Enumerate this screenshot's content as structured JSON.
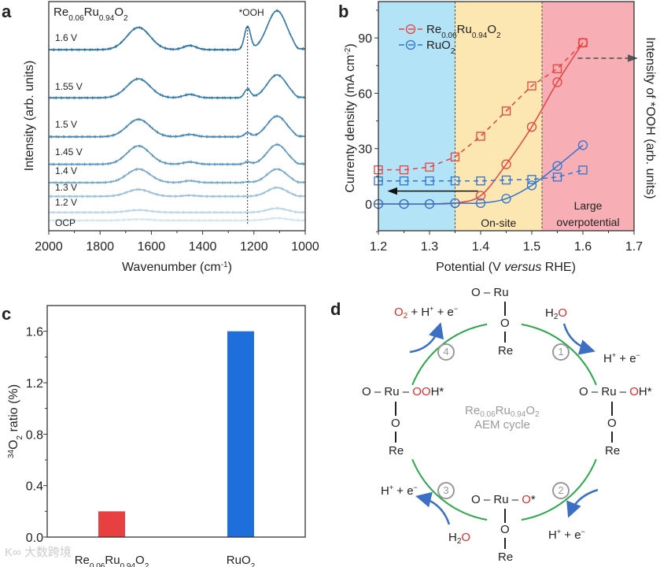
{
  "formula": {
    "re": "Re",
    "re_sub": "0.06",
    "ru": "Ru",
    "ru_sub": "0.94",
    "o": "O",
    "o_sub": "2"
  },
  "ruo2": {
    "ru": "RuO",
    "sub": "2"
  },
  "panel_labels": {
    "a": "a",
    "b": "b",
    "c": "c",
    "d": "d"
  },
  "watermark": "大数跨境",
  "chart_data": [
    {
      "panel": "a",
      "type": "line",
      "title_formula": "Re0.06Ru0.94O2",
      "xlabel": "Wavenumber (cm",
      "xlabel_sup": "-1",
      "xlabel_close": ")",
      "ylabel": "Intensity (arb. units)",
      "xlim": [
        2000,
        1000
      ],
      "ylim": [
        0,
        100
      ],
      "xticks": [
        "2000",
        "1800",
        "1600",
        "1400",
        "1200",
        "1000"
      ],
      "xtick_values": [
        2000,
        1800,
        1600,
        1400,
        1200,
        1000
      ],
      "annotation": "*OOH",
      "annotation_x": 1225,
      "peak_centers": [
        1650,
        1450,
        1225,
        1110
      ],
      "peak_widths": [
        45,
        25,
        12,
        38
      ],
      "series": [
        {
          "name": "1.6 V",
          "offset": 79,
          "peaks": [
            9.7,
            1.8,
            10,
            17
          ],
          "color": "#2f74a5"
        },
        {
          "name": "1.55 V",
          "offset": 58,
          "peaks": [
            8.3,
            1.5,
            3.8,
            10
          ],
          "color": "#3a7fae"
        },
        {
          "name": "1.5 V",
          "offset": 41,
          "peaks": [
            7.6,
            1.0,
            1.7,
            9
          ],
          "color": "#4a8ab6"
        },
        {
          "name": "1.45 V",
          "offset": 29,
          "peaks": [
            8,
            1.0,
            1.0,
            8.6
          ],
          "color": "#5f98c0"
        },
        {
          "name": "1.4 V",
          "offset": 21,
          "peaks": [
            5.9,
            0.8,
            0.3,
            5.9
          ],
          "color": "#7aaacb"
        },
        {
          "name": "1.3 V",
          "offset": 15,
          "peaks": [
            3,
            0.4,
            0,
            3.8
          ],
          "color": "#9cc2da"
        },
        {
          "name": "1.2 V",
          "offset": 8,
          "peaks": [
            1,
            0,
            0,
            1.8
          ],
          "color": "#bcd6e6"
        },
        {
          "name": "OCP",
          "offset": 4.5,
          "peaks": [
            0.5,
            0,
            0,
            1
          ],
          "color": "#d3e5ef"
        }
      ]
    },
    {
      "panel": "b",
      "type": "line",
      "xlabel": "Potential (V ",
      "xlabel_italic": "versus",
      "xlabel_end": " RHE)",
      "ylabel": "Currenty density (mA cm",
      "ylabel_sup": "-2",
      "ylabel_close": ")",
      "ylabel_right": "Intensity of *OOH (arb. units)",
      "xlim": [
        1.2,
        1.7
      ],
      "ylim": [
        -14.5,
        109.7
      ],
      "xticks": [
        "1.2",
        "1.3",
        "1.4",
        "1.5",
        "1.6",
        "1.7"
      ],
      "xtick_values": [
        1.2,
        1.3,
        1.4,
        1.5,
        1.6,
        1.7
      ],
      "yticks": [
        "0",
        "30",
        "60",
        "90"
      ],
      "ytick_values": [
        0,
        30,
        60,
        90
      ],
      "regions": [
        {
          "from": 1.2,
          "to": 1.35,
          "color": "#b3e3f6",
          "label": ""
        },
        {
          "from": 1.35,
          "to": 1.52,
          "color": "#fce7b2",
          "label": "On-site"
        },
        {
          "from": 1.52,
          "to": 1.7,
          "color": "#f7aeb5",
          "label": "Large",
          "label2": "overpotential"
        }
      ],
      "x": [
        1.2,
        1.25,
        1.3,
        1.35,
        1.4,
        1.45,
        1.5,
        1.55,
        1.6
      ],
      "series": [
        {
          "name": "Re0.06Ru0.94O2 current",
          "color": "#e8423f",
          "marker": "circle",
          "style": "solid",
          "values": [
            0,
            0,
            0,
            0.5,
            4.5,
            21.5,
            41.8,
            66,
            87.4
          ]
        },
        {
          "name": "RuO2 current",
          "color": "#2f74d0",
          "marker": "circle",
          "style": "solid",
          "values": [
            0,
            0,
            0,
            0.5,
            0.5,
            2.9,
            10.1,
            20.6,
            31.9
          ]
        },
        {
          "name": "Re0.06Ru0.94O2 *OOH intensity",
          "color": "#e8423f",
          "marker": "square",
          "style": "dashed",
          "values": [
            18.5,
            18.5,
            20,
            25.5,
            36.7,
            50.4,
            64,
            73.3,
            87.4
          ]
        },
        {
          "name": "RuO2 *OOH intensity",
          "color": "#2f74d0",
          "marker": "square",
          "style": "dashed",
          "values": [
            12.5,
            12.5,
            12.5,
            12.5,
            12.5,
            13,
            13.3,
            14.6,
            18.4
          ]
        }
      ],
      "left_arrow": {
        "from": 1.395,
        "to": 1.22,
        "y": 7
      },
      "right_arrow": {
        "from": 1.59,
        "to": 1.705,
        "y": 79
      },
      "legend_position": "top-left"
    },
    {
      "panel": "c",
      "type": "bar",
      "ylabel_sup": "34",
      "ylabel": "O",
      "ylabel_sub": "2",
      "ylabel_end": " ratio (%)",
      "categories": [
        "Re0.06Ru0.94O2",
        "RuO2"
      ],
      "values": [
        0.2,
        1.6
      ],
      "colors": [
        "#e84040",
        "#1e6fdc"
      ],
      "ylim": [
        0,
        1.8
      ],
      "yticks": [
        "0.0",
        "0.4",
        "0.8",
        "1.2",
        "1.6"
      ],
      "ytick_values": [
        0,
        0.4,
        0.8,
        1.2,
        1.6
      ]
    }
  ],
  "cycle": {
    "center_line2": "AEM cycle",
    "o": "O",
    "ru": "Ru",
    "re": "Re",
    "dash": "–",
    "oh": "O",
    "oh_h": "H*",
    "ooh": "OO",
    "ooh_h": "H*",
    "ostar": "O",
    "ostar_s": "*",
    "steps": [
      "1",
      "2",
      "3",
      "4"
    ],
    "h2o_h": "H",
    "h2o_sub": "2",
    "h2o_o": "O",
    "o2": "O",
    "o2_sub": "2",
    "o2_rest": " + H",
    "hplus": "H",
    "plus": "+",
    "e_rest": " + e",
    "minus": "−"
  }
}
